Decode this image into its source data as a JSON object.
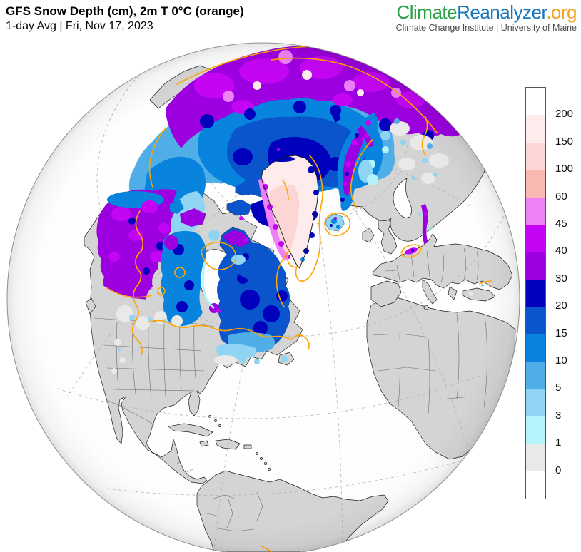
{
  "header": {
    "title": "GFS Snow Depth (cm), 2m T 0°C (orange)",
    "subtitle": "1-day Avg | Fri, Nov 17, 2023"
  },
  "branding": {
    "logo_part1": "Climate",
    "logo_part2": "Reanalyzer",
    "logo_part3": ".org",
    "tagline": "Climate Change Institute | University of Maine"
  },
  "colorbar": {
    "unit": "cm",
    "labels_top_to_bottom": [
      "200",
      "150",
      "100",
      "60",
      "45",
      "40",
      "30",
      "20",
      "15",
      "10",
      "5",
      "3",
      "1",
      "0"
    ],
    "segment_colors_top_to_bottom": [
      "#ffffff",
      "#fdeceb",
      "#fbd6d5",
      "#f9b9b3",
      "#ee80f8",
      "#c405f5",
      "#9d00e0",
      "#0000bd",
      "#0a55cb",
      "#0884de",
      "#4fade8",
      "#90d4f3",
      "#b5f3fb",
      "#e9e9e9",
      "#ffffff"
    ]
  },
  "map": {
    "type": "orthographic-globe",
    "view": "Arctic / North Atlantic hemisphere",
    "variable": "snow depth (cm)",
    "overlay": "2m temperature 0°C isotherm",
    "date_shown": "Fri, Nov 17, 2023"
  },
  "palette": {
    "brandGreen": "#2aa147",
    "brandBlue": "#1878be",
    "brandOrange": "#f2a226",
    "brandGray": "#4c4c4c",
    "ocean": "#ffffff",
    "oceanEdge": "#ececec",
    "land": "#d4d4d4",
    "coast": "#1c1c1c",
    "border": "#6e6e6e",
    "graticule": "#b4b4b4",
    "isotherm": "#FFA500",
    "outline": "#8f8f8f",
    "snow0": "#e9e9e9",
    "snow1": "#b5f3fb",
    "snow3": "#90d4f3",
    "snow5": "#4fade8",
    "snow10": "#0884de",
    "snow15": "#0a55cb",
    "snow20": "#0000bd",
    "snow30": "#9d00e0",
    "snow40": "#c405f5",
    "snow45": "#ee80f8",
    "snow60": "#f9b9b3",
    "snow100": "#fbd6d5",
    "snow150": "#fdeceb",
    "snow200": "#ffffff"
  }
}
